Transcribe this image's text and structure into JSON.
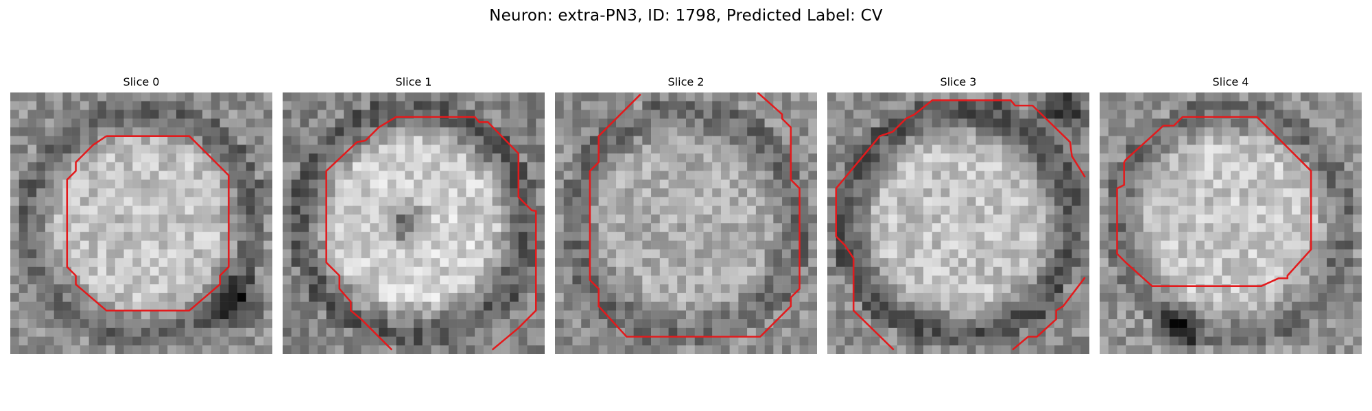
{
  "figure": {
    "title": "Neuron: extra-PN3, ID: 1798, Predicted Label: CV"
  },
  "contour_color": "#e31a1c",
  "colormap": "gray",
  "slices": [
    {
      "title": "Slice 0",
      "image": {
        "grid": 30,
        "inner_level": 0.76,
        "ring_level": 0.4,
        "bg_level": 0.56,
        "seed": 11,
        "dark_spot": [
          26,
          24
        ]
      }
    },
    {
      "title": "Slice 1",
      "image": {
        "grid": 30,
        "inner_level": 0.82,
        "ring_level": 0.36,
        "bg_level": 0.52,
        "seed": 23,
        "dark_spot": [
          14,
          15
        ]
      }
    },
    {
      "title": "Slice 2",
      "image": {
        "grid": 30,
        "inner_level": 0.68,
        "ring_level": 0.42,
        "bg_level": 0.56,
        "seed": 37,
        "dark_spot": null
      }
    },
    {
      "title": "Slice 3",
      "image": {
        "grid": 30,
        "inner_level": 0.76,
        "ring_level": 0.34,
        "bg_level": 0.54,
        "seed": 41,
        "dark_spot": [
          27,
          2
        ]
      }
    },
    {
      "title": "Slice 4",
      "image": {
        "grid": 30,
        "inner_level": 0.78,
        "ring_level": 0.44,
        "bg_level": 0.58,
        "seed": 53,
        "dark_spot": [
          9,
          27
        ]
      }
    }
  ]
}
